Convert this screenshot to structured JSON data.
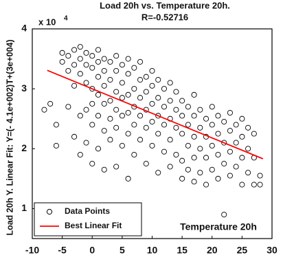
{
  "chart_data": {
    "type": "scatter",
    "title": "Load 20h vs. Temperature 20h.",
    "subtitle": "R=-0.52716",
    "x_label": "Temperature 20h",
    "y_label": "Load 20h Y. Linear Fit: Y=(- 4.1e+002)T+(3e+004)",
    "y_multiplier": "x 10",
    "y_multiplier_exponent": "4",
    "xlim": [
      -10,
      30
    ],
    "ylim": [
      5000,
      40000
    ],
    "xticks": [
      -10,
      -5,
      0,
      5,
      10,
      15,
      20,
      25,
      30
    ],
    "yticks": [
      {
        "value": 10000,
        "label": "1"
      },
      {
        "value": 20000,
        "label": "2"
      },
      {
        "value": 30000,
        "label": "3"
      },
      {
        "value": 40000,
        "label": "4"
      }
    ],
    "legend": "lower left",
    "series": [
      {
        "name": "Data Points",
        "color": "#000000",
        "marker": "open-circle",
        "x": [
          -8,
          -7,
          -6,
          -6,
          -5,
          -5,
          -4,
          -4,
          -4,
          -3,
          -3,
          -3,
          -3,
          -2,
          -2,
          -2,
          -2,
          -2,
          -1,
          -1,
          -1,
          -1,
          -1,
          0,
          0,
          0,
          0,
          0,
          0,
          1,
          1,
          1,
          1,
          1,
          1,
          2,
          2,
          2,
          2,
          2,
          2,
          3,
          3,
          3,
          3,
          3,
          4,
          4,
          4,
          4,
          4,
          4,
          5,
          5,
          5,
          5,
          5,
          6,
          6,
          6,
          6,
          6,
          6,
          7,
          7,
          7,
          7,
          7,
          8,
          8,
          8,
          8,
          8,
          9,
          9,
          9,
          9,
          9,
          10,
          10,
          10,
          10,
          10,
          11,
          11,
          11,
          11,
          11,
          12,
          12,
          12,
          12,
          13,
          13,
          13,
          13,
          13,
          14,
          14,
          14,
          14,
          15,
          15,
          15,
          15,
          15,
          16,
          16,
          16,
          16,
          17,
          17,
          17,
          17,
          17,
          18,
          18,
          18,
          18,
          19,
          19,
          19,
          19,
          20,
          20,
          20,
          20,
          21,
          21,
          21,
          21,
          22,
          22,
          22,
          22,
          23,
          23,
          23,
          23,
          24,
          24,
          24,
          25,
          25,
          25,
          25,
          26,
          26,
          26,
          27,
          27,
          27,
          28,
          28
        ],
        "y": [
          26500,
          27500,
          24000,
          20500,
          36000,
          34500,
          35500,
          33000,
          27000,
          36500,
          34000,
          30500,
          22000,
          37000,
          35000,
          32500,
          25500,
          19000,
          36000,
          34000,
          31000,
          26500,
          21000,
          35500,
          33500,
          30000,
          27500,
          24000,
          17500,
          36500,
          34500,
          32000,
          29000,
          25500,
          20000,
          35000,
          33000,
          30500,
          27500,
          23000,
          16500,
          34500,
          31500,
          28000,
          25000,
          21500,
          35500,
          33000,
          29500,
          26500,
          23500,
          17000,
          34000,
          31000,
          28500,
          25500,
          20500,
          35000,
          32500,
          29000,
          26000,
          22500,
          15000,
          33500,
          30000,
          27000,
          24000,
          19000,
          34500,
          31500,
          28500,
          25500,
          21500,
          32000,
          29500,
          26500,
          23500,
          17500,
          33000,
          30500,
          27500,
          24500,
          20500,
          31500,
          28500,
          25500,
          22500,
          16000,
          30000,
          27000,
          24000,
          19500,
          31000,
          28000,
          25000,
          21500,
          17000,
          29500,
          26500,
          23500,
          19000,
          28000,
          25500,
          22500,
          18000,
          15000,
          27000,
          24000,
          20500,
          16500,
          29000,
          25500,
          22000,
          18500,
          14500,
          26500,
          23500,
          20000,
          16000,
          25000,
          22000,
          18500,
          14000,
          27000,
          24000,
          20500,
          16500,
          25500,
          22500,
          19000,
          15000,
          24500,
          21000,
          17500,
          9000,
          26000,
          23000,
          19500,
          15500,
          24000,
          21000,
          17000,
          25000,
          22000,
          18500,
          14000,
          23500,
          20000,
          16000,
          22500,
          18500,
          14000,
          15500,
          14000
        ]
      },
      {
        "name": "Best Linear Fit",
        "color": "#ff0000",
        "marker": "line",
        "x": [
          -7.5,
          28.5
        ],
        "y": [
          33075,
          18315
        ]
      }
    ]
  }
}
